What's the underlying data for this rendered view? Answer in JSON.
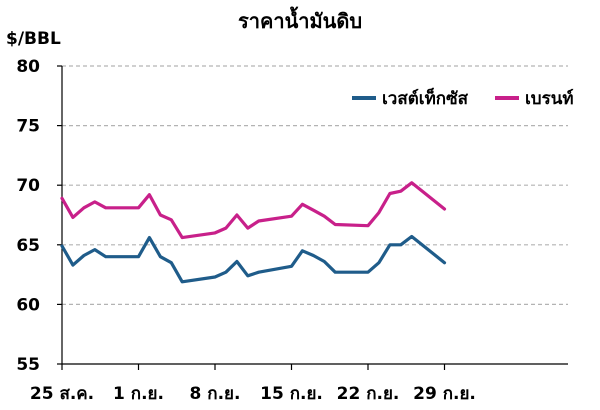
{
  "chart_data": {
    "type": "line",
    "title": "ราคาน้ำมันดิบ",
    "ylabel": "$/BBL",
    "xlabel": "",
    "ylim": [
      55,
      80
    ],
    "yticks": [
      55,
      60,
      65,
      70,
      75,
      80
    ],
    "grid": true,
    "legend_position": "top-right",
    "x_tick_labels": [
      "25 ส.ค.",
      "1 ก.ย.",
      "8 ก.ย.",
      "15 ก.ย.",
      "22 ก.ย.",
      "29 ก.ย."
    ],
    "x_tick_days": [
      0,
      7,
      14,
      21,
      28,
      35
    ],
    "x_range_days": [
      0,
      42
    ],
    "x_days": [
      0,
      1,
      2,
      3,
      4,
      7,
      8,
      9,
      10,
      11,
      14,
      15,
      16,
      17,
      18,
      21,
      22,
      23,
      24,
      25,
      28,
      29,
      30,
      31,
      32,
      35
    ],
    "series": [
      {
        "name": "เวสต์เท็กซัส",
        "color": "#1f5c8a",
        "values": [
          64.9,
          63.3,
          64.1,
          64.6,
          64.0,
          64.0,
          65.6,
          64.0,
          63.5,
          61.9,
          62.3,
          62.7,
          63.6,
          62.4,
          62.7,
          63.2,
          64.5,
          64.1,
          63.6,
          62.7,
          62.7,
          63.5,
          65.0,
          65.0,
          65.7,
          63.5
        ]
      },
      {
        "name": "เบรนท์",
        "color": "#c8208a",
        "values": [
          68.9,
          67.3,
          68.1,
          68.6,
          68.1,
          68.1,
          69.2,
          67.5,
          67.1,
          65.6,
          66.0,
          66.4,
          67.5,
          66.4,
          67.0,
          67.4,
          68.4,
          67.9,
          67.4,
          66.7,
          66.6,
          67.7,
          69.3,
          69.5,
          70.2,
          68.0
        ]
      }
    ]
  }
}
